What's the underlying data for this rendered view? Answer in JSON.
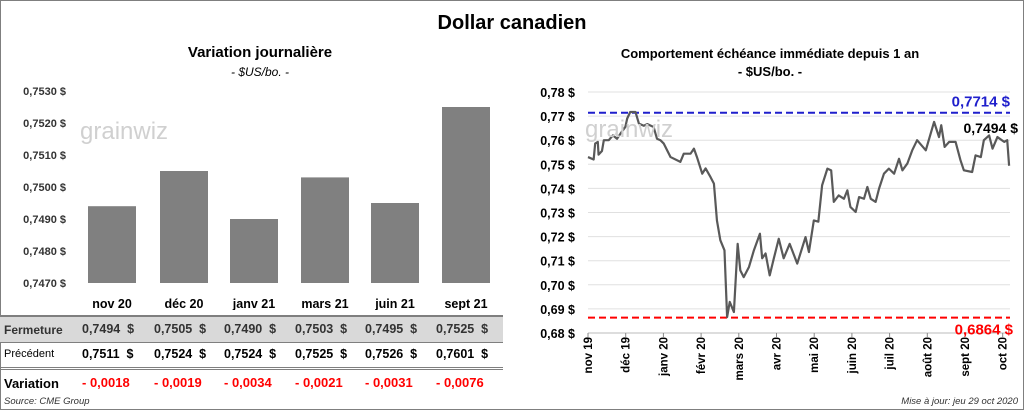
{
  "title": "Dollar canadien",
  "watermark": "grainwiz",
  "left": {
    "title": "Variation  journalière",
    "subtitle": "- $US/bo. -"
  },
  "right": {
    "title": "Comportement échéance immédiate depuis 1 an",
    "subtitle": "- $US/bo. -"
  },
  "colors": {
    "bar": "#808080",
    "line": "#595959",
    "high": "#1f1fcc",
    "low": "#ff0000",
    "neg": "#ff0000"
  },
  "table": {
    "fermeture_label": "Fermeture",
    "precedent_label": "Précédent",
    "variation_label": "Variation",
    "fermeture": [
      "0,7494  $",
      "0,7505  $",
      "0,7490  $",
      "0,7503  $",
      "0,7495  $",
      "0,7525  $"
    ],
    "precedent": [
      "0,7511  $",
      "0,7524  $",
      "0,7524  $",
      "0,7525  $",
      "0,7526  $",
      "0,7601  $"
    ],
    "variation": [
      "- 0,0018",
      "- 0,0019",
      "- 0,0034",
      "- 0,0021",
      "- 0,0031",
      "- 0,0076"
    ]
  },
  "source": "Source: CME Group",
  "updated": "Mise à jour: jeu 29 oct 2020",
  "chart_data": [
    {
      "type": "bar",
      "title": "Variation  journalière",
      "ylabel": "$US/bo.",
      "categories": [
        "nov 20",
        "déc 20",
        "janv 21",
        "mars 21",
        "juin 21",
        "sept 21"
      ],
      "values": [
        0.7494,
        0.7505,
        0.749,
        0.7503,
        0.7495,
        0.7525
      ],
      "ylim": [
        0.747,
        0.753
      ],
      "yticks": [
        "0,7470 $",
        "0,7480 $",
        "0,7490 $",
        "0,7500 $",
        "0,7510 $",
        "0,7520 $",
        "0,7530 $"
      ]
    },
    {
      "type": "line",
      "title": "Comportement échéance immédiate depuis 1 an",
      "ylabel": "$US/bo.",
      "xticks": [
        "nov 19",
        "déc 19",
        "janv 20",
        "févr 20",
        "mars 20",
        "avr 20",
        "mai 20",
        "juin 20",
        "juil 20",
        "août 20",
        "sept 20",
        "oct 20"
      ],
      "yticks": [
        "0,68 $",
        "0,69 $",
        "0,70 $",
        "0,71 $",
        "0,72 $",
        "0,73 $",
        "0,74 $",
        "0,75 $",
        "0,76 $",
        "0,77 $",
        "0,78 $"
      ],
      "ylim": [
        0.68,
        0.78
      ],
      "high": {
        "value": 0.7714,
        "label": "0,7714 $"
      },
      "low": {
        "value": 0.6864,
        "label": "0,6864 $"
      },
      "last": {
        "value": 0.7494,
        "label": "0,7494 $"
      },
      "points": [
        [
          0,
          0.753
        ],
        [
          0.15,
          0.752
        ],
        [
          0.19,
          0.7586
        ],
        [
          0.26,
          0.7593
        ],
        [
          0.28,
          0.754
        ],
        [
          0.37,
          0.7555
        ],
        [
          0.42,
          0.76
        ],
        [
          0.55,
          0.76
        ],
        [
          0.66,
          0.762
        ],
        [
          0.77,
          0.7606
        ],
        [
          0.86,
          0.7627
        ],
        [
          0.99,
          0.7655
        ],
        [
          1.04,
          0.769
        ],
        [
          1.12,
          0.7717
        ],
        [
          1.26,
          0.7717
        ],
        [
          1.35,
          0.7669
        ],
        [
          1.48,
          0.766
        ],
        [
          1.57,
          0.7667
        ],
        [
          1.74,
          0.7655
        ],
        [
          1.83,
          0.7606
        ],
        [
          1.92,
          0.76
        ],
        [
          2.01,
          0.7586
        ],
        [
          2.19,
          0.753
        ],
        [
          2.45,
          0.751
        ],
        [
          2.54,
          0.7544
        ],
        [
          2.72,
          0.7544
        ],
        [
          2.81,
          0.7565
        ],
        [
          2.89,
          0.753
        ],
        [
          3.03,
          0.7461
        ],
        [
          3.12,
          0.7483
        ],
        [
          3.25,
          0.7447
        ],
        [
          3.34,
          0.742
        ],
        [
          3.42,
          0.7267
        ],
        [
          3.51,
          0.7185
        ],
        [
          3.62,
          0.7143
        ],
        [
          3.69,
          0.6866
        ],
        [
          3.76,
          0.6929
        ],
        [
          3.87,
          0.6887
        ],
        [
          3.97,
          0.717
        ],
        [
          4.04,
          0.706
        ],
        [
          4.13,
          0.7032
        ],
        [
          4.27,
          0.7074
        ],
        [
          4.4,
          0.7143
        ],
        [
          4.56,
          0.7212
        ],
        [
          4.62,
          0.711
        ],
        [
          4.71,
          0.713
        ],
        [
          4.82,
          0.7039
        ],
        [
          4.93,
          0.711
        ],
        [
          5.06,
          0.7191
        ],
        [
          5.19,
          0.711
        ],
        [
          5.35,
          0.717
        ],
        [
          5.55,
          0.7088
        ],
        [
          5.77,
          0.7198
        ],
        [
          5.86,
          0.7136
        ],
        [
          5.99,
          0.7267
        ],
        [
          6.11,
          0.7262
        ],
        [
          6.21,
          0.7413
        ],
        [
          6.35,
          0.7482
        ],
        [
          6.45,
          0.7475
        ],
        [
          6.52,
          0.7344
        ],
        [
          6.65,
          0.7371
        ],
        [
          6.79,
          0.7357
        ],
        [
          6.88,
          0.7392
        ],
        [
          6.96,
          0.7323
        ],
        [
          7.1,
          0.7302
        ],
        [
          7.19,
          0.7364
        ],
        [
          7.32,
          0.7357
        ],
        [
          7.41,
          0.7406
        ],
        [
          7.5,
          0.7357
        ],
        [
          7.63,
          0.7344
        ],
        [
          7.72,
          0.7399
        ],
        [
          7.85,
          0.7461
        ],
        [
          7.98,
          0.7482
        ],
        [
          8.12,
          0.7461
        ],
        [
          8.25,
          0.7523
        ],
        [
          8.34,
          0.7475
        ],
        [
          8.47,
          0.7503
        ],
        [
          8.6,
          0.7558
        ],
        [
          8.73,
          0.76
        ],
        [
          8.96,
          0.7558
        ],
        [
          9.18,
          0.7676
        ],
        [
          9.31,
          0.7613
        ],
        [
          9.37,
          0.7662
        ],
        [
          9.46,
          0.7572
        ],
        [
          9.58,
          0.7593
        ],
        [
          9.75,
          0.7593
        ],
        [
          9.88,
          0.7517
        ],
        [
          9.97,
          0.7475
        ],
        [
          10.19,
          0.7468
        ],
        [
          10.28,
          0.7537
        ],
        [
          10.42,
          0.753
        ],
        [
          10.5,
          0.76
        ],
        [
          10.64,
          0.762
        ],
        [
          10.73,
          0.7565
        ],
        [
          10.86,
          0.7613
        ],
        [
          11.04,
          0.7593
        ],
        [
          11.12,
          0.76
        ],
        [
          11.17,
          0.7494
        ]
      ]
    }
  ]
}
